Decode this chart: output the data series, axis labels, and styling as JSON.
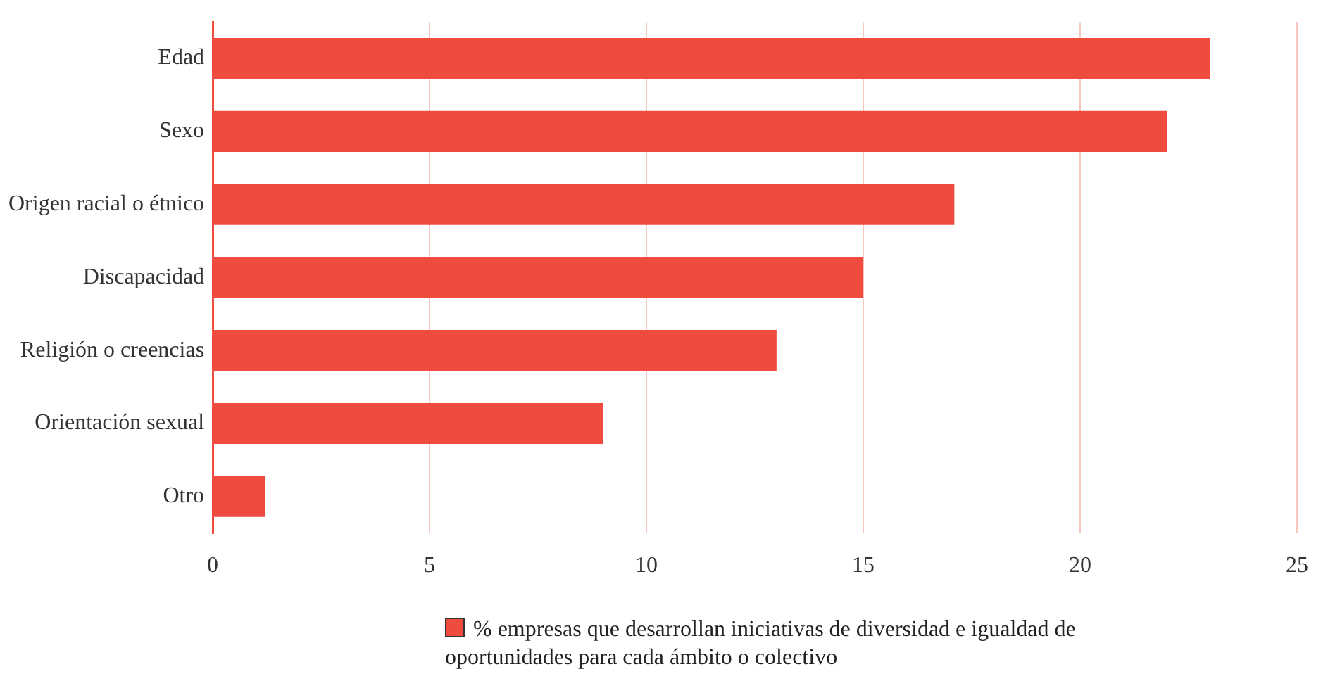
{
  "chart_data": {
    "type": "bar",
    "orientation": "horizontal",
    "categories": [
      "Edad",
      "Sexo",
      "Origen racial o étnico",
      "Discapacidad",
      "Religión o creencias",
      "Orientación sexual",
      "Otro"
    ],
    "series": [
      {
        "name": "% empresas que desarrollan iniciativas de diversidad e igualdad de oportunidades para cada ámbito o colectivo",
        "color": "#ef4b3f",
        "values": [
          23,
          22,
          17.1,
          15,
          13,
          9,
          1.2
        ]
      }
    ],
    "xlim": [
      0,
      25
    ],
    "xticks": [
      0,
      5,
      10,
      15,
      20,
      25
    ],
    "grid": "x",
    "legend": "bottom"
  }
}
